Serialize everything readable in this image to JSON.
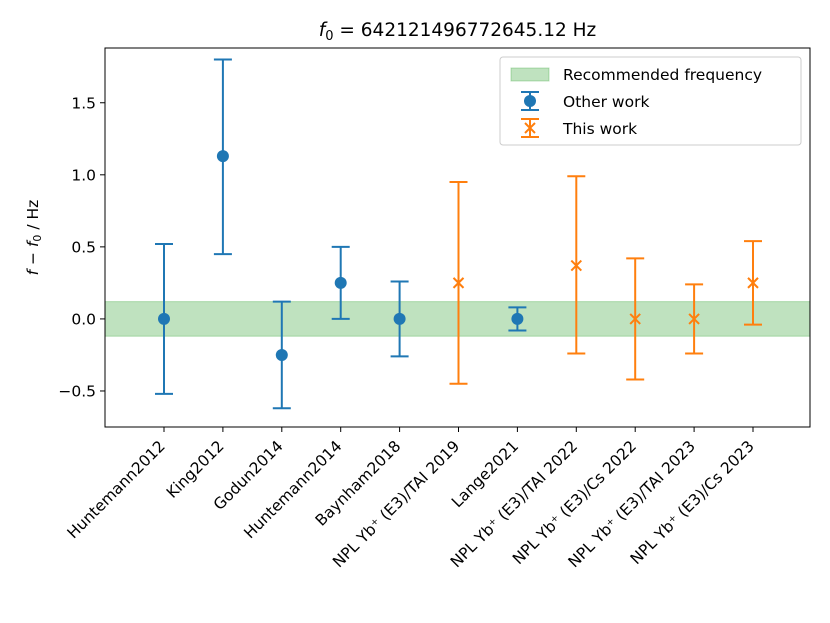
{
  "chart_data": {
    "type": "scatter",
    "title": "f0 = 642121496772645.12 Hz",
    "title_prefix": "f",
    "title_sub": "0",
    "title_value": " = 642121496772645.12 Hz",
    "xlabel": "",
    "ylabel": "f − f0 / Hz",
    "ylabel_f": "f − f",
    "ylabel_sub": "0",
    "ylabel_unit": " / Hz",
    "ylim": [
      -0.75,
      1.88
    ],
    "yticks": [
      -0.5,
      0.0,
      0.5,
      1.0,
      1.5
    ],
    "ytick_labels": [
      "−0.5",
      "0.0",
      "0.5",
      "1.0",
      "1.5"
    ],
    "categories": [
      "Huntemann2012",
      "King2012",
      "Godun2014",
      "Huntemann2014",
      "Baynham2018",
      "NPL Yb⁺ (E3)/TAI 2019",
      "Lange2021",
      "NPL Yb⁺ (E3)/TAI 2022",
      "NPL Yb⁺ (E3)/Cs 2022",
      "NPL Yb⁺ (E3)/TAI 2023",
      "NPL Yb⁺ (E3)/Cs 2023"
    ],
    "band": {
      "name": "Recommended frequency",
      "low": -0.12,
      "high": 0.12,
      "color": "#2ca02c"
    },
    "series": [
      {
        "name": "Other work",
        "color": "#1f77b4",
        "marker": "circle",
        "points": [
          {
            "category": "Huntemann2012",
            "value": 0.0,
            "err_low": -0.52,
            "err_high": 0.52
          },
          {
            "category": "King2012",
            "value": 1.13,
            "err_low": 0.45,
            "err_high": 1.8
          },
          {
            "category": "Godun2014",
            "value": -0.25,
            "err_low": -0.62,
            "err_high": 0.12
          },
          {
            "category": "Huntemann2014",
            "value": 0.25,
            "err_low": 0.0,
            "err_high": 0.5
          },
          {
            "category": "Baynham2018",
            "value": 0.0,
            "err_low": -0.26,
            "err_high": 0.26
          },
          {
            "category": "Lange2021",
            "value": 0.0,
            "err_low": -0.08,
            "err_high": 0.08
          }
        ]
      },
      {
        "name": "This work",
        "color": "#ff7f0e",
        "marker": "x",
        "points": [
          {
            "category": "NPL Yb⁺ (E3)/TAI 2019",
            "value": 0.25,
            "err_low": -0.45,
            "err_high": 0.95
          },
          {
            "category": "NPL Yb⁺ (E3)/TAI 2022",
            "value": 0.37,
            "err_low": -0.24,
            "err_high": 0.99
          },
          {
            "category": "NPL Yb⁺ (E3)/Cs 2022",
            "value": 0.0,
            "err_low": -0.42,
            "err_high": 0.42
          },
          {
            "category": "NPL Yb⁺ (E3)/TAI 2023",
            "value": 0.0,
            "err_low": -0.24,
            "err_high": 0.24
          },
          {
            "category": "NPL Yb⁺ (E3)/Cs 2023",
            "value": 0.25,
            "err_low": -0.04,
            "err_high": 0.54
          }
        ]
      }
    ],
    "legend": {
      "position": "top-right",
      "entries": [
        "Recommended frequency",
        "Other work",
        "This work"
      ]
    },
    "grid": false
  }
}
